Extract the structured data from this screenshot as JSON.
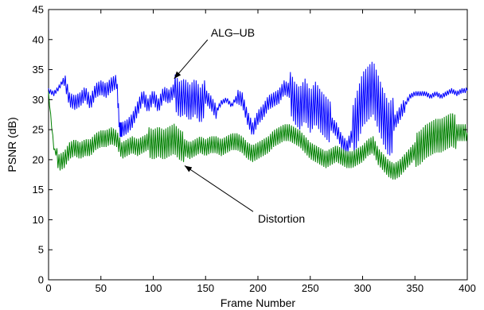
{
  "chart_data": {
    "type": "line",
    "title": "",
    "xlabel": "Frame Number",
    "ylabel": "PSNR (dB)",
    "xlim": [
      0,
      400
    ],
    "ylim": [
      0,
      45
    ],
    "xticks": [
      0,
      50,
      100,
      150,
      200,
      250,
      300,
      350,
      400
    ],
    "yticks": [
      0,
      5,
      10,
      15,
      20,
      25,
      30,
      35,
      40,
      45
    ],
    "grid": false,
    "legend": "none",
    "series": [
      {
        "name": "ALG-UB",
        "color": "#0000ff",
        "x": [
          0,
          5,
          10,
          15,
          20,
          25,
          30,
          35,
          40,
          45,
          50,
          55,
          60,
          65,
          68,
          70,
          75,
          80,
          85,
          90,
          95,
          100,
          105,
          110,
          115,
          120,
          125,
          130,
          135,
          140,
          145,
          150,
          155,
          160,
          165,
          170,
          175,
          180,
          185,
          190,
          195,
          200,
          205,
          210,
          215,
          220,
          225,
          230,
          235,
          240,
          245,
          250,
          255,
          260,
          265,
          270,
          275,
          280,
          285,
          290,
          295,
          300,
          305,
          310,
          315,
          320,
          325,
          330,
          335,
          340,
          345,
          350,
          355,
          360,
          365,
          370,
          375,
          380,
          385,
          390,
          395,
          400
        ],
        "y": [
          31.5,
          31,
          32,
          33.5,
          30,
          29.5,
          30,
          31,
          29.5,
          31.5,
          32,
          31.5,
          32.5,
          33,
          25,
          25,
          25.5,
          26.5,
          28.5,
          30.5,
          29,
          30.5,
          29,
          31,
          30.5,
          31.5,
          30,
          30.5,
          29.5,
          30.5,
          29,
          30.5,
          29.5,
          28,
          29.5,
          30,
          29,
          30.5,
          30,
          27,
          25,
          27,
          28,
          29.5,
          30,
          30.5,
          32,
          31.5,
          29.5,
          28.5,
          30,
          28,
          29.5,
          28,
          27,
          26,
          25,
          23,
          22,
          24,
          27,
          30,
          31,
          32,
          29.5,
          27,
          25,
          26,
          27.5,
          29,
          30.5,
          31,
          31,
          31,
          30.5,
          31,
          30.5,
          31,
          31.5,
          31,
          31.5,
          31.5
        ]
      },
      {
        "name": "Distortion",
        "color": "#008000",
        "x": [
          0,
          5,
          10,
          15,
          20,
          25,
          30,
          35,
          40,
          45,
          50,
          55,
          60,
          65,
          70,
          75,
          80,
          85,
          90,
          95,
          100,
          105,
          110,
          115,
          120,
          125,
          130,
          135,
          140,
          145,
          150,
          155,
          160,
          165,
          170,
          175,
          180,
          185,
          190,
          195,
          200,
          205,
          210,
          215,
          220,
          225,
          230,
          235,
          240,
          245,
          250,
          255,
          260,
          265,
          270,
          275,
          280,
          285,
          290,
          295,
          300,
          305,
          310,
          315,
          320,
          325,
          330,
          335,
          340,
          345,
          350,
          355,
          360,
          365,
          370,
          375,
          380,
          385,
          390,
          395,
          400
        ],
        "y": [
          31,
          22,
          19.5,
          20,
          21.5,
          22,
          21.5,
          22,
          22,
          23,
          23.5,
          23.5,
          24,
          23.5,
          21.5,
          22,
          22.5,
          22,
          22.5,
          23,
          22.5,
          23,
          22.5,
          23,
          23.5,
          22.5,
          22,
          21.5,
          22,
          22.5,
          22,
          22.5,
          22.5,
          22,
          22.5,
          23,
          23,
          22.5,
          21.5,
          21,
          21.5,
          22,
          22.5,
          23.5,
          24,
          24.5,
          24.5,
          24,
          23.5,
          22.5,
          21.5,
          21,
          20.5,
          20,
          20.5,
          21,
          20.5,
          20,
          20,
          20.5,
          21,
          22,
          22.5,
          20.5,
          19.5,
          18.5,
          18,
          18.5,
          19.5,
          20.5,
          21.5,
          22,
          23,
          23.5,
          24,
          24,
          24.5,
          25,
          24.5,
          24.5,
          24.5
        ]
      }
    ],
    "annotations": [
      {
        "text": "ALG–UB",
        "target": [
          120,
          33.5
        ],
        "text_at": [
          155,
          40.5
        ]
      },
      {
        "text": "Distortion",
        "target": [
          130,
          19
        ],
        "text_at": [
          200,
          9.5
        ]
      }
    ]
  }
}
